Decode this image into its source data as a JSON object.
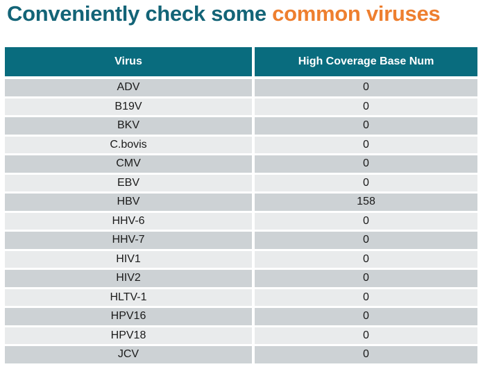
{
  "title": {
    "part1": "Conveniently check some ",
    "part2": "common viruses"
  },
  "table": {
    "columns": [
      "Virus",
      "High Coverage Base Num"
    ],
    "rows": [
      {
        "virus": "ADV",
        "value": "0"
      },
      {
        "virus": "B19V",
        "value": "0"
      },
      {
        "virus": "BKV",
        "value": "0"
      },
      {
        "virus": "C.bovis",
        "value": "0"
      },
      {
        "virus": "CMV",
        "value": "0"
      },
      {
        "virus": "EBV",
        "value": "0"
      },
      {
        "virus": "HBV",
        "value": "158"
      },
      {
        "virus": "HHV-6",
        "value": "0"
      },
      {
        "virus": "HHV-7",
        "value": "0"
      },
      {
        "virus": "HIV1",
        "value": "0"
      },
      {
        "virus": "HIV2",
        "value": "0"
      },
      {
        "virus": "HLTV-1",
        "value": "0"
      },
      {
        "virus": "HPV16",
        "value": "0"
      },
      {
        "virus": "HPV18",
        "value": "0"
      },
      {
        "virus": "JCV",
        "value": "0"
      }
    ]
  },
  "colors": {
    "title-teal": "#136477",
    "title-orange": "#EE7F2F",
    "header-teal": "#096C7E",
    "row-dark": "#CDD2D5",
    "row-light": "#E9EBEC",
    "text-dark": "#1A1A1A"
  }
}
